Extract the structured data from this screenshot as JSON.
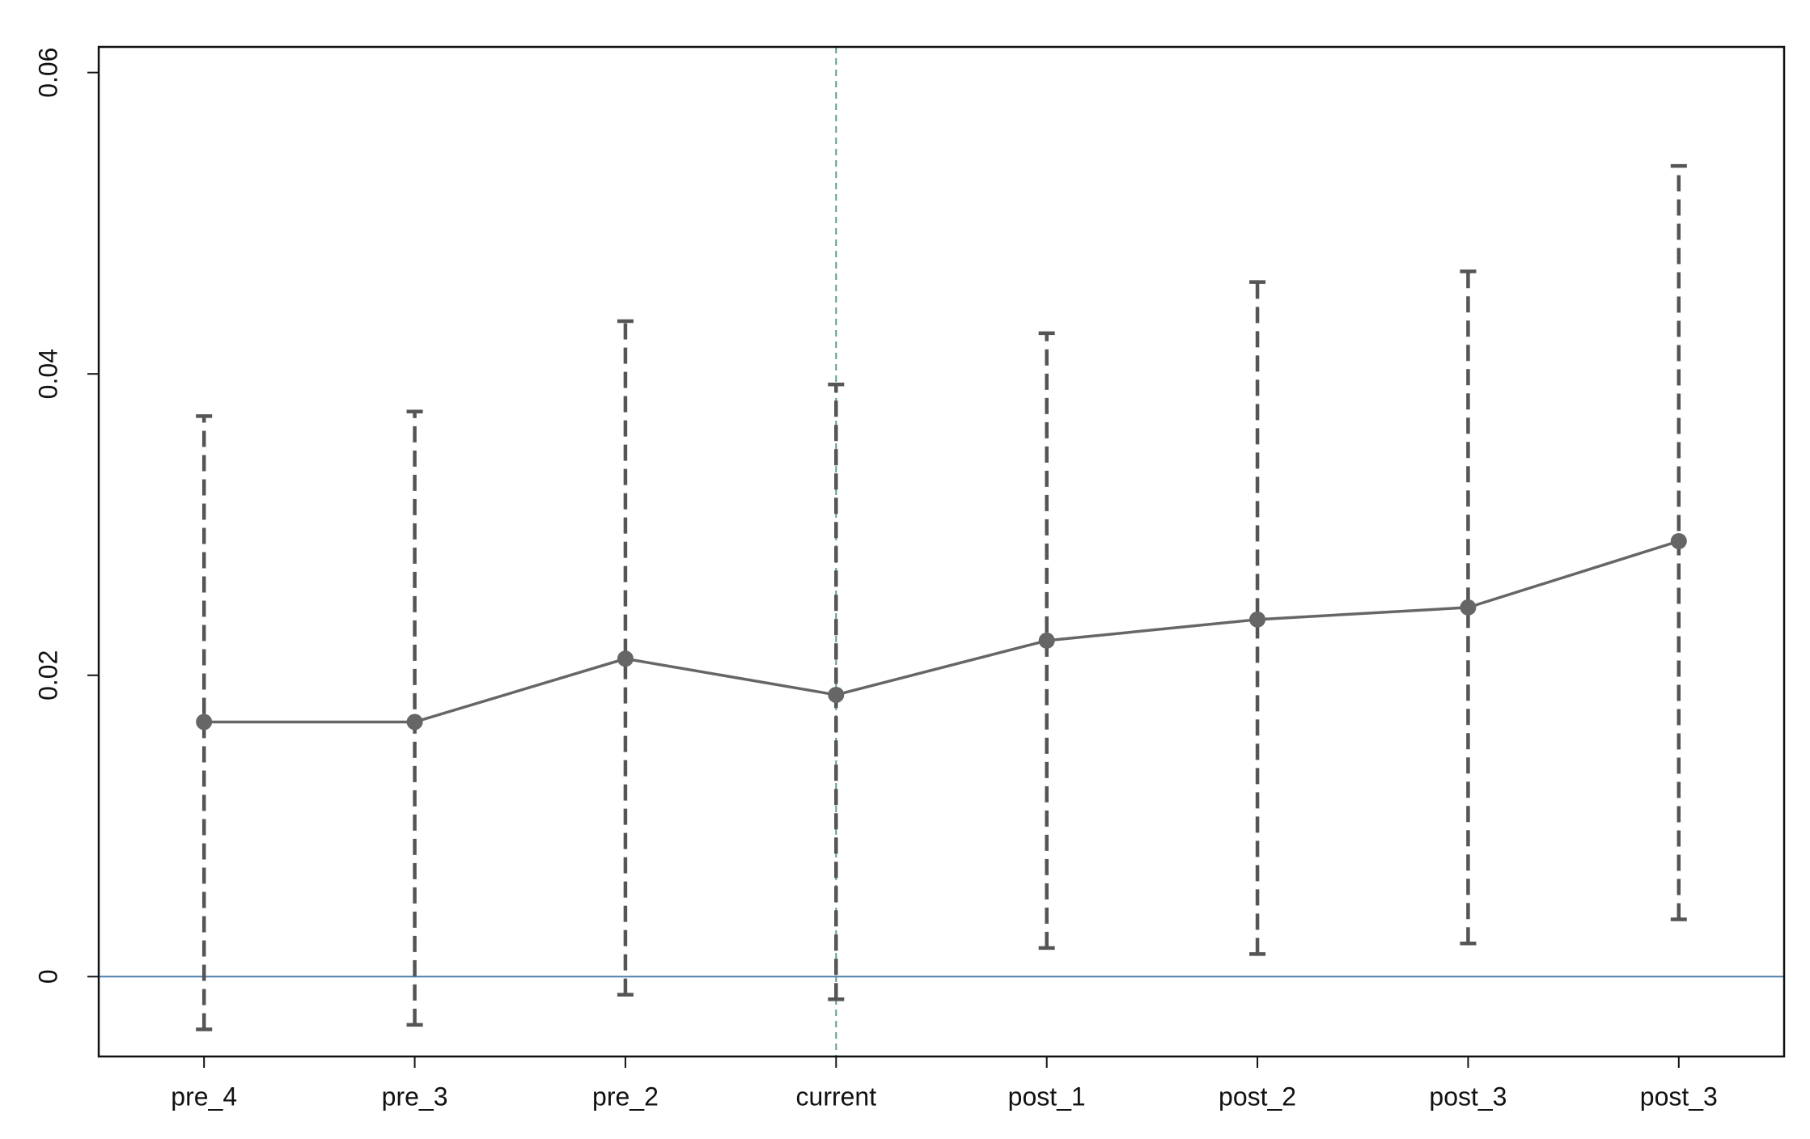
{
  "chart_data": {
    "type": "line",
    "categories": [
      "pre_4",
      "pre_3",
      "pre_2",
      "current",
      "post_1",
      "post_2",
      "post_3",
      "post_3"
    ],
    "series": [
      {
        "color": "#666666",
        "values": [
          0.0169,
          0.0169,
          0.0211,
          0.0187,
          0.0223,
          0.0237,
          0.0245,
          0.0289
        ],
        "lower": [
          -0.0035,
          -0.0032,
          -0.0012,
          -0.0015,
          0.0019,
          0.0015,
          0.0022,
          0.0038
        ],
        "upper": [
          0.0372,
          0.0375,
          0.0435,
          0.0393,
          0.0427,
          0.0461,
          0.0468,
          0.0538
        ],
        "error_color": "#555555"
      }
    ],
    "ylim": [
      -0.0053,
      0.0617
    ],
    "yticks": [
      0,
      0.02,
      0.04,
      0.06
    ],
    "hline": {
      "value": 0,
      "color": "#4a7fa8"
    },
    "vline": {
      "index": 3,
      "color": "#5a9a8a"
    },
    "grid": false
  }
}
